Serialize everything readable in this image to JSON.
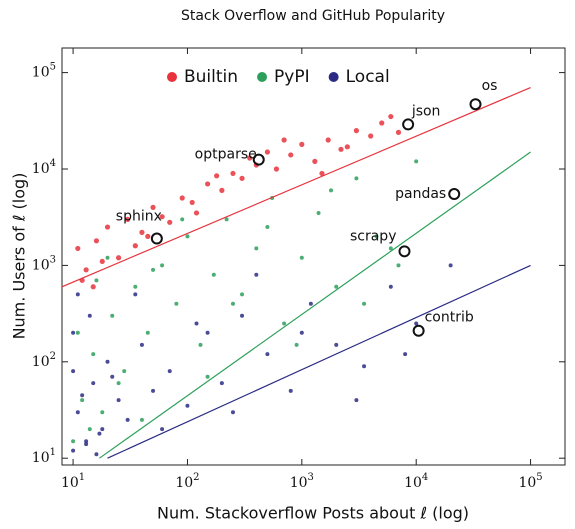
{
  "chart_data": {
    "type": "scatter",
    "title": "Stack Overflow and GitHub Popularity",
    "x_label": "Num. Stackoverflow Posts about ℓ (log)",
    "y_label": "Num. Users of ℓ (log)",
    "x_scale": "log",
    "y_scale": "log",
    "xlim": [
      8,
      200000
    ],
    "ylim": [
      8.5,
      180000
    ],
    "xticks": [
      {
        "value": 10,
        "label": "10",
        "exp": "1"
      },
      {
        "value": 100,
        "label": "10",
        "exp": "2"
      },
      {
        "value": 1000,
        "label": "10",
        "exp": "3"
      },
      {
        "value": 10000,
        "label": "10",
        "exp": "4"
      },
      {
        "value": 100000,
        "label": "10",
        "exp": "5"
      }
    ],
    "yticks": [
      {
        "value": 10,
        "label": "10",
        "exp": "1"
      },
      {
        "value": 100,
        "label": "10",
        "exp": "2"
      },
      {
        "value": 1000,
        "label": "10",
        "exp": "3"
      },
      {
        "value": 10000,
        "label": "10",
        "exp": "4"
      },
      {
        "value": 100000,
        "label": "10",
        "exp": "5"
      }
    ],
    "legend_position": "top",
    "series": [
      {
        "name": "Builtin",
        "color": "#e8323c",
        "x": [
          11,
          13,
          16,
          20,
          25,
          30,
          40,
          50,
          70,
          90,
          120,
          150,
          200,
          250,
          300,
          400,
          500,
          600,
          800,
          1000,
          1300,
          1700,
          2200,
          3000,
          4000,
          5000,
          7000,
          12,
          18,
          35,
          60,
          110,
          180,
          350,
          700,
          1500,
          2500,
          6000,
          15,
          45
        ],
        "values": [
          1500,
          900,
          1800,
          2500,
          1200,
          3000,
          2200,
          4000,
          2800,
          5000,
          3500,
          7000,
          6000,
          9000,
          8000,
          11000,
          15000,
          10000,
          14000,
          18000,
          12000,
          20000,
          16000,
          25000,
          22000,
          30000,
          24000,
          700,
          1100,
          1600,
          3200,
          4500,
          8500,
          13000,
          20000,
          9000,
          17000,
          35000,
          600,
          2000
        ]
      },
      {
        "name": "PyPI",
        "color": "#2ca05a",
        "x": [
          10,
          12,
          15,
          18,
          22,
          28,
          35,
          45,
          60,
          80,
          100,
          130,
          170,
          220,
          300,
          400,
          550,
          700,
          1000,
          1400,
          2000,
          3000,
          4500,
          7000,
          10000,
          14,
          25,
          50,
          90,
          150,
          250,
          500,
          900,
          1800,
          3500,
          6000,
          20,
          40,
          11,
          16
        ],
        "values": [
          15,
          40,
          120,
          30,
          300,
          80,
          600,
          200,
          1000,
          400,
          2000,
          150,
          800,
          3000,
          500,
          1500,
          5000,
          250,
          1200,
          3500,
          600,
          8000,
          2000,
          1000,
          12000,
          20,
          60,
          900,
          3000,
          70,
          400,
          2500,
          150,
          6000,
          400,
          1500,
          1200,
          25,
          200,
          700
        ]
      },
      {
        "name": "Local",
        "color": "#2b2b85",
        "x": [
          10,
          11,
          13,
          15,
          18,
          20,
          25,
          30,
          40,
          50,
          70,
          100,
          150,
          200,
          300,
          500,
          800,
          1200,
          2000,
          3500,
          6000,
          10000,
          20000,
          12,
          14,
          17,
          22,
          35,
          60,
          120,
          250,
          400,
          1000,
          3000,
          8000,
          10,
          10,
          11,
          13,
          16
        ],
        "values": [
          12,
          30,
          15,
          60,
          20,
          100,
          40,
          25,
          150,
          50,
          80,
          35,
          200,
          60,
          300,
          120,
          50,
          400,
          150,
          90,
          600,
          250,
          1000,
          45,
          300,
          18,
          70,
          500,
          20,
          250,
          30,
          800,
          200,
          40,
          120,
          80,
          200,
          500,
          14,
          11
        ]
      }
    ],
    "fit_lines": [
      {
        "color": "#e8323c",
        "x": [
          8,
          100000
        ],
        "values": [
          600,
          70000
        ]
      },
      {
        "color": "#2ca05a",
        "x": [
          17,
          100000
        ],
        "values": [
          10,
          15000
        ]
      },
      {
        "color": "#2b2b85",
        "x": [
          20,
          100000
        ],
        "values": [
          10,
          1000
        ]
      }
    ],
    "annotations": [
      {
        "label": "os",
        "x": 33000,
        "y": 47000
      },
      {
        "label": "json",
        "x": 8500,
        "y": 29000
      },
      {
        "label": "optparse",
        "x": 420,
        "y": 12500
      },
      {
        "label": "pandas",
        "x": 21500,
        "y": 5500
      },
      {
        "label": "sphinx",
        "x": 54,
        "y": 1900
      },
      {
        "label": "scrapy",
        "x": 7900,
        "y": 1400
      },
      {
        "label": "contrib",
        "x": 10500,
        "y": 210
      }
    ]
  }
}
